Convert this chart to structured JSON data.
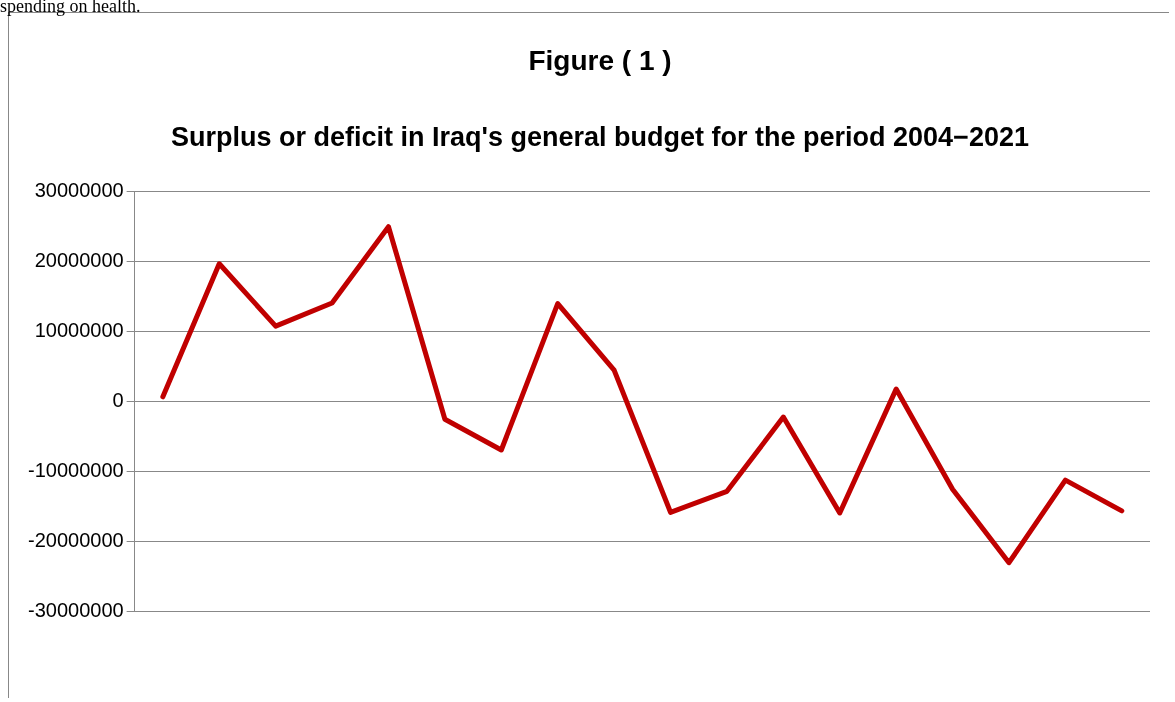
{
  "chart_data": {
    "type": "line",
    "title": "Figure ( 1 )",
    "subtitle": "Surplus or deficit in Iraq's general budget for the period 2004−2021",
    "annotations": [
      "spending on health."
    ],
    "categories": [
      null,
      null,
      null,
      null,
      null,
      null,
      null,
      null,
      null,
      null,
      null,
      null,
      null,
      null,
      null,
      null,
      null,
      null
    ],
    "series": [
      {
        "color": "#c00000",
        "values": [
          600000,
          19600000,
          10700000,
          14000000,
          24900000,
          -2600000,
          -7000000,
          13900000,
          4400000,
          -15900000,
          -12900000,
          -2300000,
          -16000000,
          1700000,
          -12600000,
          -23100000,
          -11300000,
          -15700000
        ]
      }
    ],
    "ylim": [
      -30000000,
      30000000
    ],
    "yticks": [
      -30000000,
      -20000000,
      -10000000,
      0,
      10000000,
      20000000,
      30000000
    ],
    "grid": "y",
    "legend": false,
    "marker": "none",
    "line_style": "solid",
    "tick_labels": "y"
  }
}
